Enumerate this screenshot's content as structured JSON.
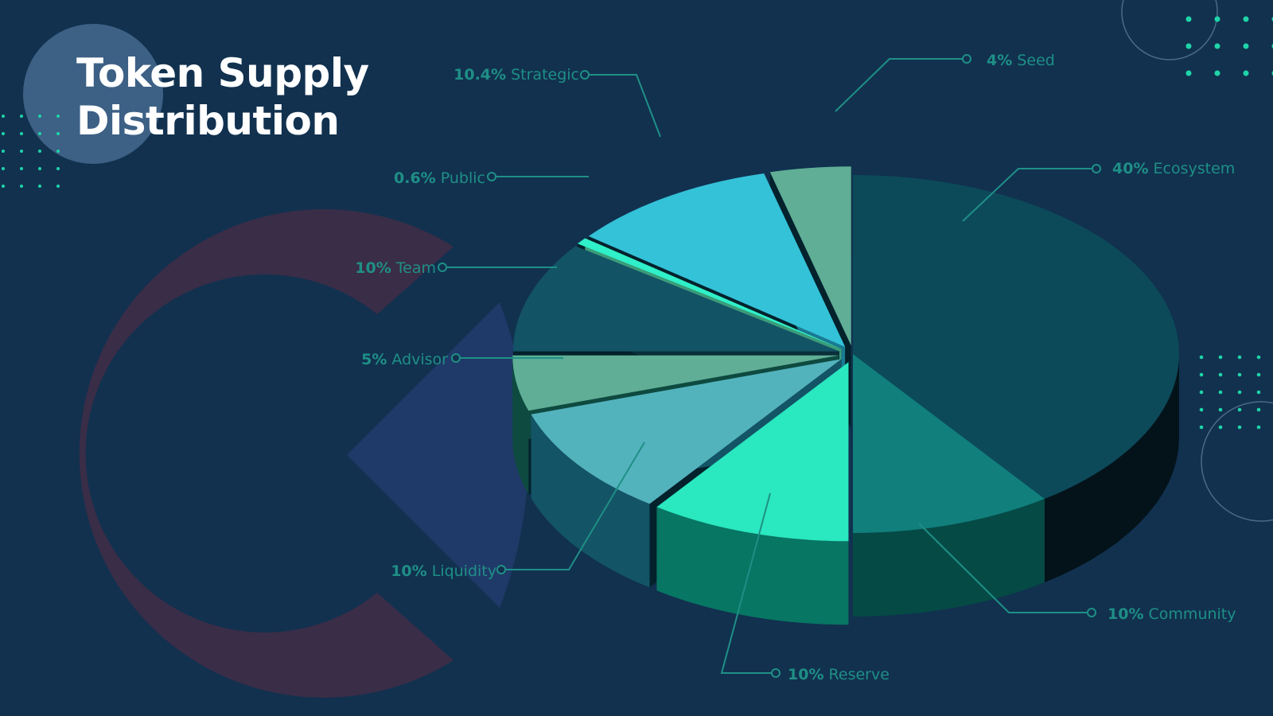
{
  "title": {
    "line1": "Token Supply",
    "line2": "Distribution"
  },
  "colors": {
    "background": "#11314f",
    "label": "#1f8f86",
    "leader": "#1f8f86",
    "title": "#ffffff",
    "accent_dots": "#1fd5a8",
    "deco_ring": "#3a2d47",
    "deco_disc": "#3d6085",
    "deco_wedge": "#1f3a68"
  },
  "chart_data": {
    "type": "pie",
    "unit": "%",
    "slices": [
      {
        "name": "Ecosystem",
        "value": 40,
        "pct_label": "40%",
        "color": "#0c4a5a",
        "side": "#04131a"
      },
      {
        "name": "Community",
        "value": 10,
        "pct_label": "10%",
        "color": "#117f7b",
        "side": "#054a45"
      },
      {
        "name": "Reserve",
        "value": 10,
        "pct_label": "10%",
        "color": "#2ae8c0",
        "side": "#077663"
      },
      {
        "name": "Liquidity",
        "value": 10,
        "pct_label": "10%",
        "color": "#53b3bd",
        "side": "#135466"
      },
      {
        "name": "Advisor",
        "value": 5,
        "pct_label": "5%",
        "color": "#5fae95",
        "side": "#0e4a40"
      },
      {
        "name": "Team",
        "value": 10,
        "pct_label": "10%",
        "color": "#135366",
        "side": "#0a2f3b"
      },
      {
        "name": "Public",
        "value": 0.6,
        "pct_label": "0.6%",
        "color": "#2ff0c8",
        "side": "#3a9c7a"
      },
      {
        "name": "Strategic",
        "value": 10.4,
        "pct_label": "10.4%",
        "color": "#34c2d8",
        "side": "#197a92"
      },
      {
        "name": "Seed",
        "value": 4,
        "pct_label": "4%",
        "color": "#5fae95",
        "side": "#0a6b58"
      }
    ]
  }
}
